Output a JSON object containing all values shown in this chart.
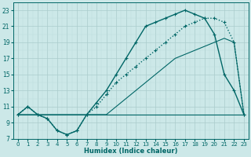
{
  "xlabel": "Humidex (Indice chaleur)",
  "xlim": [
    -0.5,
    23.5
  ],
  "ylim": [
    7,
    24
  ],
  "yticks": [
    7,
    9,
    11,
    13,
    15,
    17,
    19,
    21,
    23
  ],
  "xticks": [
    0,
    1,
    2,
    3,
    4,
    5,
    6,
    7,
    8,
    9,
    10,
    11,
    12,
    13,
    14,
    15,
    16,
    17,
    18,
    19,
    20,
    21,
    22,
    23
  ],
  "bg_color": "#cce8e8",
  "grid_major_color": "#aacccc",
  "grid_minor_color": "#bbdddd",
  "line_color": "#006666",
  "series": [
    {
      "x": [
        0,
        1,
        2,
        3,
        4,
        5,
        6,
        7,
        8,
        9,
        10,
        11,
        12,
        13,
        14,
        15,
        16,
        17,
        18,
        19,
        20,
        21,
        22,
        23
      ],
      "y": [
        10,
        10,
        10,
        10,
        10,
        10,
        10,
        10,
        10,
        10,
        10,
        10,
        10,
        10,
        10,
        10,
        10,
        10,
        10,
        10,
        10,
        10,
        10,
        10
      ],
      "style": "-",
      "marker": null,
      "lw": 0.8
    },
    {
      "x": [
        0,
        1,
        2,
        3,
        4,
        5,
        6,
        7,
        8,
        9,
        10,
        11,
        12,
        13,
        14,
        15,
        16,
        17,
        18,
        19,
        20,
        21,
        22,
        23
      ],
      "y": [
        10,
        10,
        10,
        10,
        10,
        10,
        10,
        10,
        10,
        10,
        11,
        12,
        13,
        14,
        15,
        16,
        17,
        17.5,
        18,
        18.5,
        19,
        19.5,
        19,
        10
      ],
      "style": "-",
      "marker": null,
      "lw": 0.8
    },
    {
      "x": [
        0,
        1,
        2,
        3,
        4,
        5,
        6,
        7,
        8,
        9,
        10,
        11,
        12,
        13,
        14,
        15,
        16,
        17,
        18,
        19,
        20,
        21,
        22,
        23
      ],
      "y": [
        10,
        11,
        10,
        9.5,
        8,
        7.5,
        8,
        10,
        11,
        12.5,
        14,
        15,
        16,
        17,
        18,
        19,
        20,
        21,
        21.5,
        22,
        22,
        21.5,
        19,
        10
      ],
      "style": ":",
      "marker": "+",
      "lw": 1.0
    },
    {
      "x": [
        0,
        1,
        2,
        3,
        4,
        5,
        6,
        7,
        8,
        9,
        10,
        11,
        12,
        13,
        14,
        15,
        16,
        17,
        18,
        19,
        20,
        21,
        22,
        23
      ],
      "y": [
        10,
        11,
        10,
        9.5,
        8,
        7.5,
        8,
        10,
        11.5,
        13,
        15,
        17,
        19,
        21,
        21.5,
        22,
        22.5,
        23,
        22.5,
        22,
        20,
        15,
        13,
        10
      ],
      "style": "-",
      "marker": "+",
      "lw": 1.0
    }
  ]
}
